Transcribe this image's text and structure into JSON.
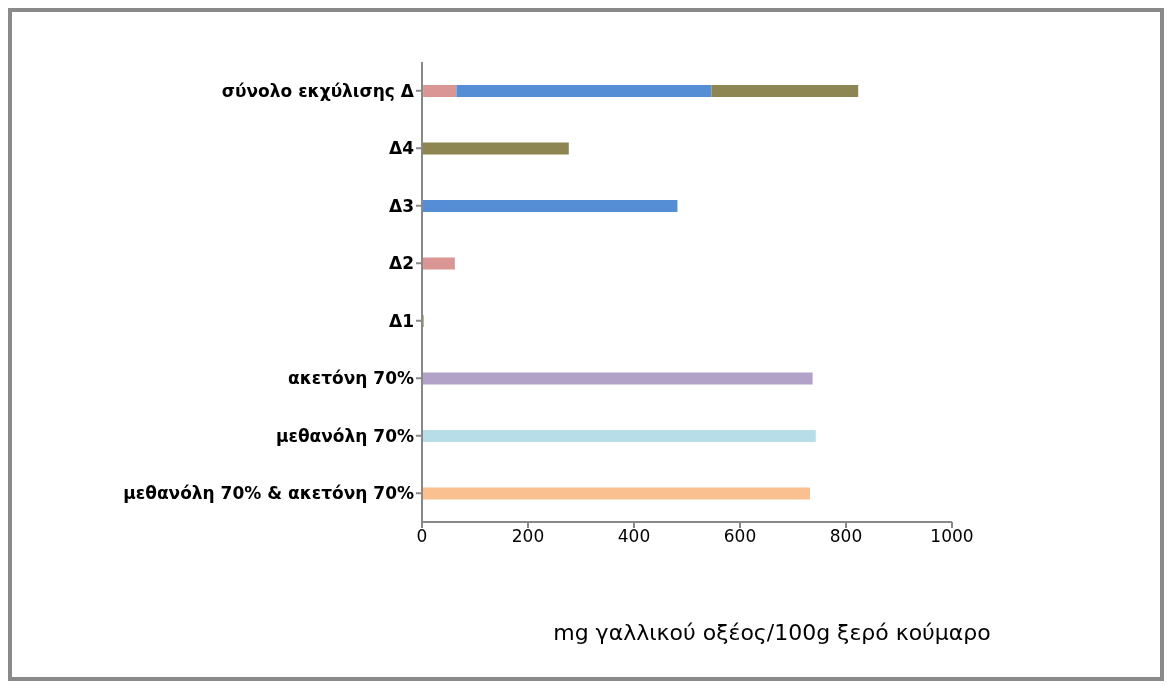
{
  "chart_data": {
    "type": "bar",
    "orientation": "horizontal",
    "stacked": true,
    "categories": [
      "σύνολο εκχύλισης Δ",
      "Δ4",
      "Δ3",
      "Δ2",
      "Δ1",
      "ακετόνη 70%",
      "μεθανόλη 70%",
      "μεθανόλη 70% & ακετόνη 70%"
    ],
    "series": [
      {
        "color": "#77933c",
        "values": [
          3,
          null,
          null,
          null,
          3,
          null,
          null,
          null
        ]
      },
      {
        "color": "#d99694",
        "values": [
          62,
          null,
          null,
          62,
          null,
          null,
          null,
          null
        ]
      },
      {
        "color": "#558ed5",
        "values": [
          481,
          null,
          482,
          null,
          null,
          null,
          null,
          null
        ]
      },
      {
        "color": "#8e8652",
        "values": [
          277,
          277,
          null,
          null,
          null,
          null,
          null,
          null
        ]
      },
      {
        "color": "#b3a2c7",
        "values": [
          null,
          null,
          null,
          null,
          null,
          737,
          null,
          null
        ]
      },
      {
        "color": "#b7dee8",
        "values": [
          null,
          null,
          null,
          null,
          null,
          null,
          743,
          null
        ]
      },
      {
        "color": "#fac090",
        "values": [
          null,
          null,
          null,
          null,
          null,
          null,
          null,
          732
        ]
      }
    ],
    "xlim": [
      0,
      1000
    ],
    "xticks": [
      0,
      200,
      400,
      600,
      800,
      1000
    ],
    "xlabel": "mg γαλλικού οξέος/100g ξερό κούμαρο"
  }
}
